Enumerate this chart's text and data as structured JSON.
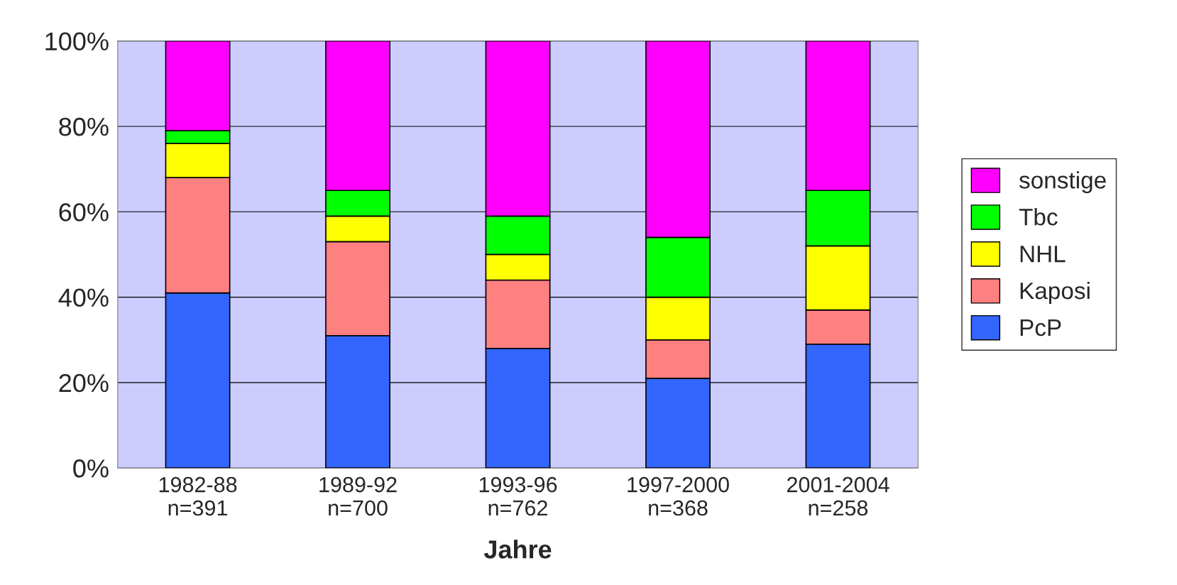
{
  "chart_data": {
    "type": "bar",
    "stacked": true,
    "xlabel": "Jahre",
    "categories": [
      "1982-88\nn=391",
      "1989-92\nn=700",
      "1993-96\nn=762",
      "1997-2000\nn=368",
      "2001-2004\nn=258"
    ],
    "series": [
      {
        "name": "PcP",
        "color": "#3366ff",
        "values": [
          41,
          31,
          28,
          21,
          29
        ]
      },
      {
        "name": "Kaposi",
        "color": "#ff8080",
        "values": [
          27,
          22,
          16,
          9,
          8
        ]
      },
      {
        "name": "NHL",
        "color": "#ffff00",
        "values": [
          8,
          6,
          6,
          10,
          15
        ]
      },
      {
        "name": "Tbc",
        "color": "#00ff00",
        "values": [
          3,
          6,
          9,
          14,
          13
        ]
      },
      {
        "name": "sonstige",
        "color": "#ff00ff",
        "values": [
          21,
          35,
          41,
          46,
          35
        ]
      }
    ],
    "ylim": [
      0,
      100
    ],
    "yticks": [
      {
        "value": 0,
        "label": "0%"
      },
      {
        "value": 20,
        "label": "20%"
      },
      {
        "value": 40,
        "label": "40%"
      },
      {
        "value": 60,
        "label": "60%"
      },
      {
        "value": 80,
        "label": "80%"
      },
      {
        "value": 100,
        "label": "100%"
      }
    ],
    "grid": "y",
    "legend": "right"
  }
}
